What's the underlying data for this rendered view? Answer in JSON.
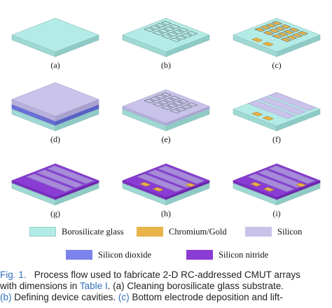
{
  "panels": [
    {
      "label": "(a)",
      "layers": [
        "glass"
      ]
    },
    {
      "label": "(b)",
      "layers": [
        "glass"
      ],
      "cavities": true
    },
    {
      "label": "(c)",
      "layers": [
        "glass"
      ],
      "cavities": true,
      "electrodes": true
    },
    {
      "label": "(d)",
      "layers": [
        "glass",
        "silicon_dioxide",
        "silicon"
      ]
    },
    {
      "label": "(e)",
      "layers": [
        "glass",
        "silicon_thin"
      ],
      "cavities": true
    },
    {
      "label": "(f)",
      "layers": [
        "glass",
        "silicon_strips"
      ],
      "electrodes": true
    },
    {
      "label": "(g)",
      "layers": [
        "glass",
        "silicon_nitride"
      ]
    },
    {
      "label": "(h)",
      "layers": [
        "glass",
        "silicon_nitride"
      ],
      "pads": true
    },
    {
      "label": "(i)",
      "layers": [
        "glass",
        "silicon_nitride"
      ],
      "pads": true
    }
  ],
  "legend": [
    {
      "label": "Borosilicate glass",
      "color": "#b3ebe6"
    },
    {
      "label": "Chromium/Gold",
      "color": "#e8b44a"
    },
    {
      "label": "Silicon",
      "color": "#c9c3ea"
    },
    {
      "label": "Silicon dioxide",
      "color": "#7c83ea"
    },
    {
      "label": "Silicon nitride",
      "color": "#8a3cd4"
    }
  ],
  "caption": {
    "line1_prefix": "Fig. 1.",
    "line1_text": "Process flow used to fabricate 2-D RC-addressed CMUT arrays",
    "line2_text": "with dimensions in ",
    "line2_link": "Table I",
    "line2_rest": ". (a) Cleaning borosilicate glass substrate.",
    "line3_link_b": "(b)",
    "line3_text_b": " Defining device cavities. ",
    "line3_link_c": "(c)",
    "line3_text_c": " Bottom electrode deposition and lift-"
  }
}
